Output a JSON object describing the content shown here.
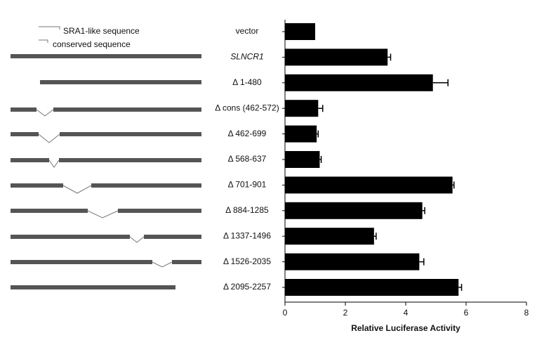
{
  "chart_data": {
    "type": "bar",
    "orientation": "horizontal",
    "annotations": [
      "SRA1-like sequence",
      "conserved sequence"
    ],
    "categories": [
      "vector",
      "SLNCR1",
      "Δ 1-480",
      "Δ cons (462-572)",
      "Δ 462-699",
      "Δ 568-637",
      "Δ 701-901",
      "Δ 884-1285",
      "Δ 1337-1496",
      "Δ 1526-2035",
      "Δ 2095-2257"
    ],
    "italic_categories": [
      "SLNCR1"
    ],
    "values": [
      1.0,
      3.4,
      4.9,
      1.1,
      1.05,
      1.15,
      5.55,
      4.55,
      2.95,
      4.45,
      5.75
    ],
    "errors": [
      null,
      0.1,
      0.5,
      0.15,
      0.05,
      0.05,
      0.05,
      0.08,
      0.07,
      0.15,
      0.1
    ],
    "color": "#000000",
    "xlabel": "Relative Luciferase Activity",
    "xlim": [
      0,
      8
    ],
    "xticks": [
      0,
      2,
      4,
      6,
      8
    ]
  }
}
